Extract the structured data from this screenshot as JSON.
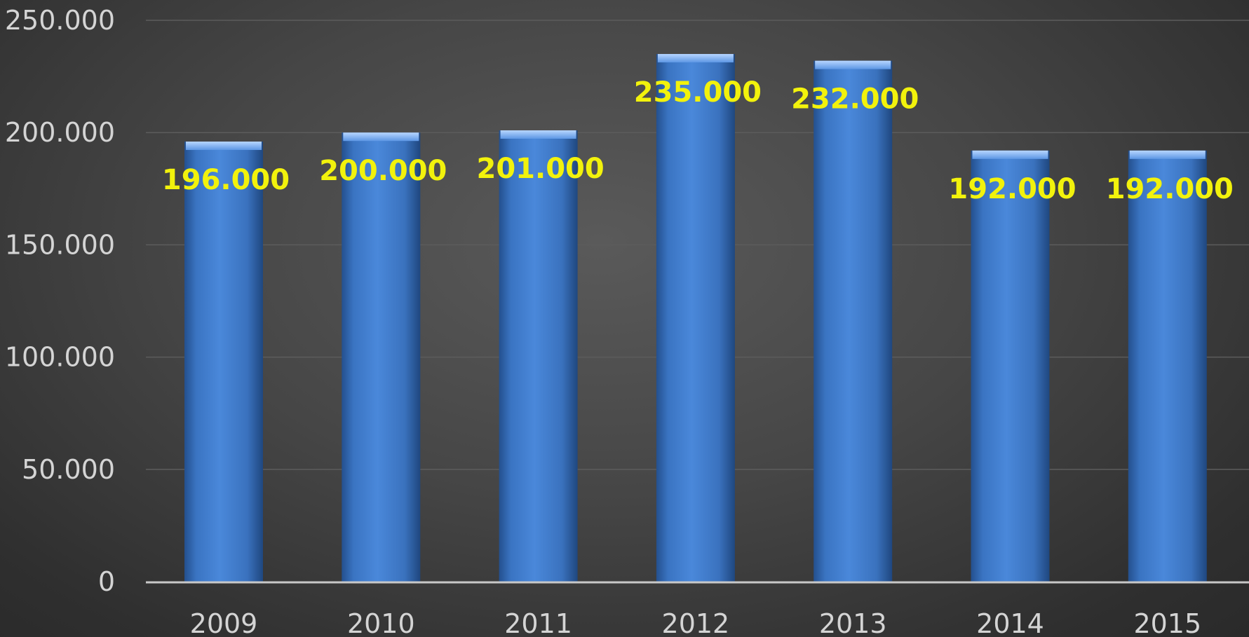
{
  "chart_data": {
    "type": "bar",
    "title": "",
    "xlabel": "",
    "ylabel": "",
    "categories": [
      "2009",
      "2010",
      "2011",
      "2012",
      "2013",
      "2014",
      "2015"
    ],
    "values": [
      196000,
      200000,
      201000,
      235000,
      232000,
      192000,
      192000
    ],
    "data_labels": [
      "196.000",
      "200.000",
      "201.000",
      "235.000",
      "232.000",
      "192.000",
      "192.000"
    ],
    "ylim": [
      0,
      250000
    ],
    "y_ticks": [
      0,
      50000,
      100000,
      150000,
      200000,
      250000
    ],
    "y_tick_labels": [
      "0",
      "50.000",
      "100.000",
      "150.000",
      "200.000",
      "250.000"
    ],
    "grid": true,
    "legend": "none",
    "colors": {
      "bar": "#3f7fd0",
      "data_label": "#f2f20c",
      "axis_text": "#d4d4d4",
      "gridline": "#5c5c5c",
      "axis_line": "#c8c8c8"
    }
  }
}
